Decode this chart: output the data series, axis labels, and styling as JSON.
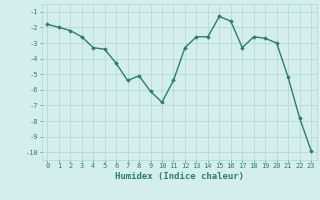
{
  "x": [
    0,
    1,
    2,
    3,
    4,
    5,
    6,
    7,
    8,
    9,
    10,
    11,
    12,
    13,
    14,
    15,
    16,
    17,
    18,
    19,
    20,
    21,
    22,
    23
  ],
  "y": [
    -1.8,
    -2.0,
    -2.2,
    -2.6,
    -3.3,
    -3.4,
    -4.3,
    -5.4,
    -5.1,
    -6.1,
    -6.8,
    -5.4,
    -3.3,
    -2.6,
    -2.6,
    -1.3,
    -1.6,
    -3.3,
    -2.6,
    -2.7,
    -3.0,
    -5.2,
    -7.8,
    -9.9
  ],
  "line_color": "#2d7d6e",
  "marker": "D",
  "marker_size": 1.8,
  "bg_color": "#d4eeee",
  "grid_color": "#b8d8d8",
  "xlabel": "Humidex (Indice chaleur)",
  "ylim": [
    -10.5,
    -0.5
  ],
  "xlim": [
    -0.5,
    23.5
  ],
  "yticks": [
    -10,
    -9,
    -8,
    -7,
    -6,
    -5,
    -4,
    -3,
    -2,
    -1
  ],
  "xticks": [
    0,
    1,
    2,
    3,
    4,
    5,
    6,
    7,
    8,
    9,
    10,
    11,
    12,
    13,
    14,
    15,
    16,
    17,
    18,
    19,
    20,
    21,
    22,
    23
  ],
  "tick_fontsize": 5.0,
  "xlabel_fontsize": 6.5,
  "line_width": 1.0
}
